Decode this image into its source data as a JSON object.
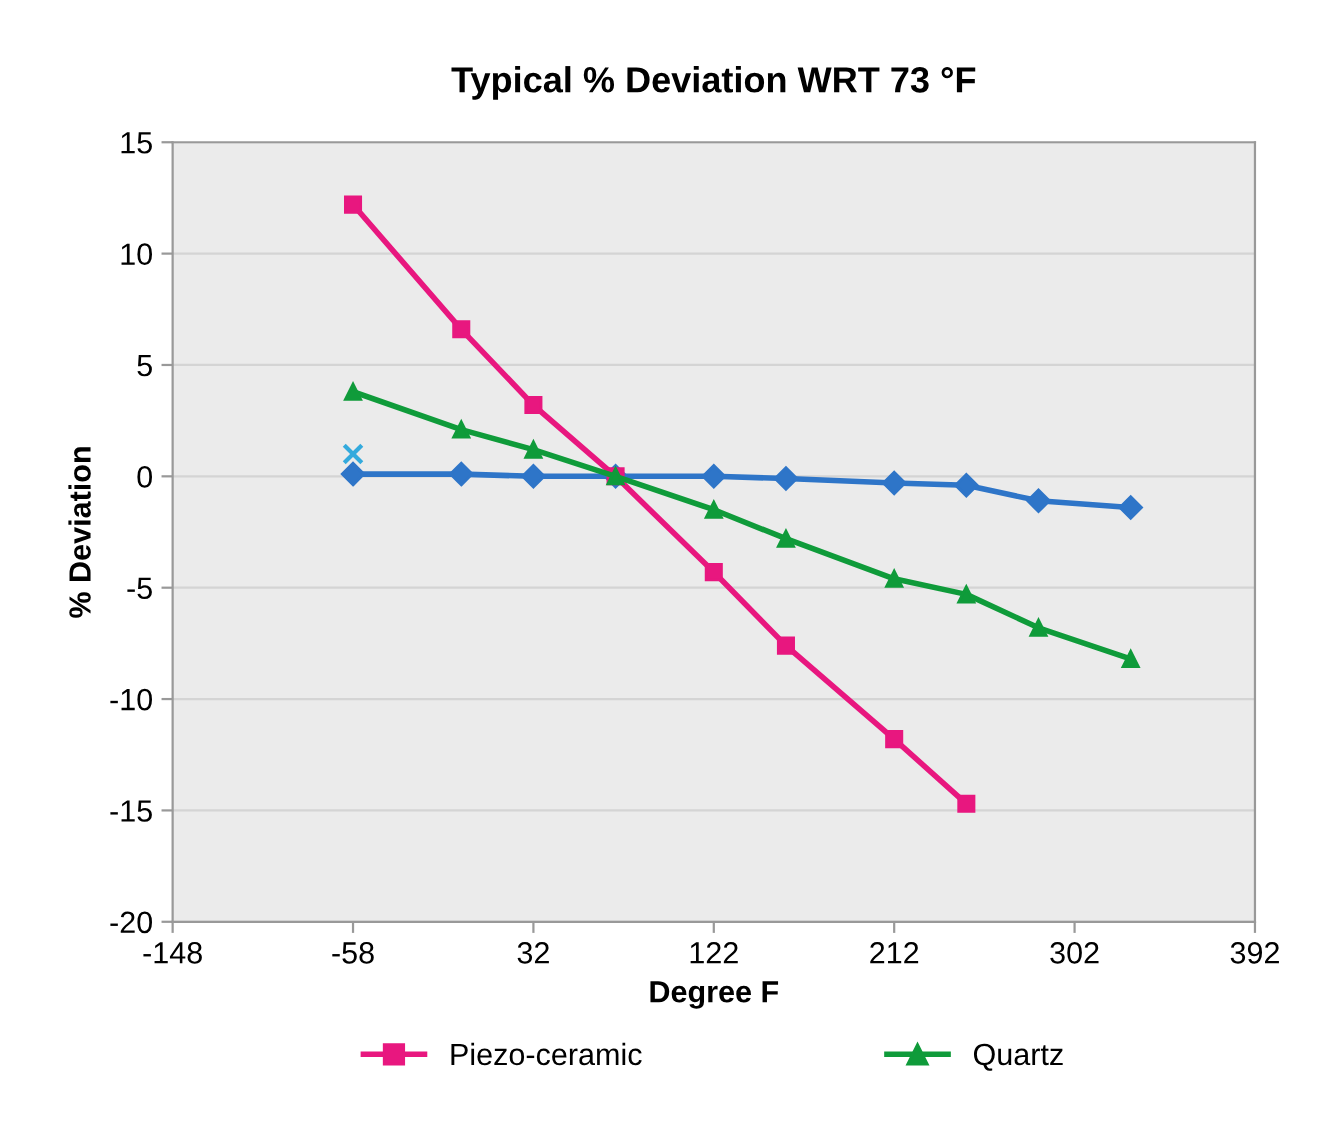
{
  "chart_data": {
    "type": "line",
    "title": "Typical % Deviation WRT 73 °F",
    "xlabel": "Degree F",
    "ylabel": "% Deviation",
    "xlim": [
      -148,
      392
    ],
    "xticks": [
      -148,
      -58,
      32,
      122,
      212,
      302,
      392
    ],
    "ylim": [
      -20,
      15
    ],
    "yticks": [
      -20,
      -15,
      -10,
      -5,
      0,
      5,
      10,
      15
    ],
    "grid": "y",
    "legend": "bottom",
    "series": [
      {
        "color": "#2e75c8",
        "marker": "diamond",
        "x": [
          -58,
          -4,
          32,
          73,
          122,
          158,
          212,
          248,
          284,
          330
        ],
        "values": [
          0.1,
          0.1,
          0.0,
          0.0,
          0.0,
          -0.1,
          -0.3,
          -0.4,
          -1.1,
          -1.4
        ]
      },
      {
        "name": "Piezo-ceramic",
        "color": "#e8177f",
        "marker": "square",
        "x": [
          -58,
          -4,
          32,
          73,
          122,
          158,
          212,
          248
        ],
        "values": [
          12.2,
          6.6,
          3.2,
          0.0,
          -4.3,
          -7.6,
          -11.8,
          -14.7
        ]
      },
      {
        "name": "Quartz",
        "color": "#0f9b3a",
        "marker": "triangle",
        "x": [
          -58,
          -4,
          32,
          73,
          122,
          158,
          212,
          248,
          284,
          330
        ],
        "values": [
          3.8,
          2.1,
          1.2,
          0.0,
          -1.5,
          -2.8,
          -4.6,
          -5.3,
          -6.8,
          -8.2
        ]
      },
      {
        "type": "scatter",
        "color": "#33aadd",
        "marker": "cross",
        "x": [
          -58
        ],
        "values": [
          1.0
        ]
      }
    ]
  }
}
